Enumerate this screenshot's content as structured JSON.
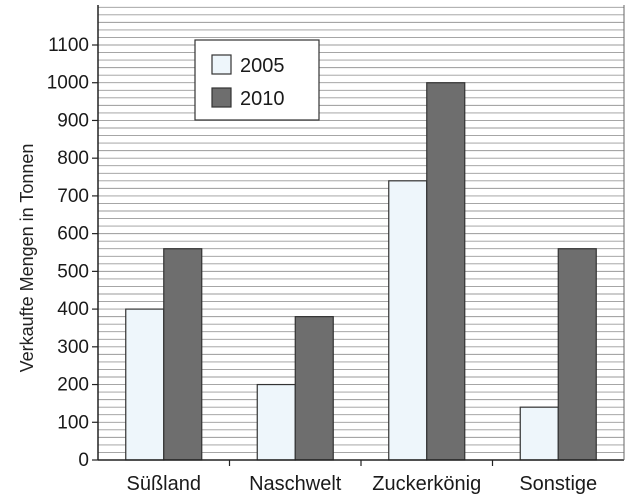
{
  "chart_data": {
    "type": "bar",
    "categories": [
      "Süßland",
      "Naschwelt",
      "Zuckerkönig",
      "Sonstige"
    ],
    "series": [
      {
        "name": "2005",
        "values": [
          400,
          200,
          740,
          140
        ],
        "color": "#eef6fb"
      },
      {
        "name": "2010",
        "values": [
          560,
          380,
          1000,
          560
        ],
        "color": "#6e6e6e"
      }
    ],
    "ylabel": "Verkaufte Mengen in Tonnen",
    "xlabel": "",
    "ylim": [
      0,
      1100
    ],
    "yticks": [
      0,
      100,
      200,
      300,
      400,
      500,
      600,
      700,
      800,
      900,
      1000,
      1100
    ],
    "grid_minor_step": 20,
    "grid": true,
    "legend_position": "top-left"
  }
}
